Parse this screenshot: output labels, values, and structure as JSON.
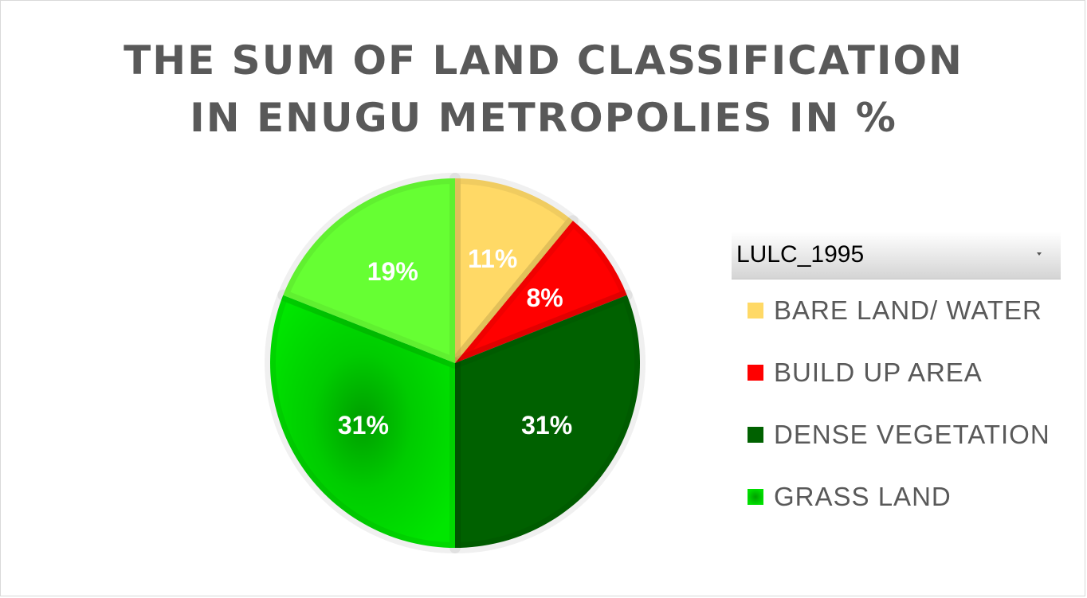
{
  "chart_data": {
    "type": "pie",
    "title_lines": [
      "THE SUM OF LAND CLASSIFICATION",
      "IN ENUGU METROPOLIES IN %"
    ],
    "field_filter": "LULC_1995",
    "categories": [
      "BARE LAND/ WATER",
      "BUILD UP AREA",
      "DENSE VEGETATION",
      "GRASS LAND"
    ],
    "values": [
      11,
      8,
      31,
      31
    ],
    "data_labels": [
      "11%",
      "8%",
      "31%",
      "31%"
    ],
    "colors": [
      "#ffd966",
      "#ff0000",
      "#006100",
      "#00e000"
    ],
    "additional_slice": {
      "value": 19,
      "label": "19%",
      "color": "#66ff33"
    },
    "legend_position": "right"
  }
}
